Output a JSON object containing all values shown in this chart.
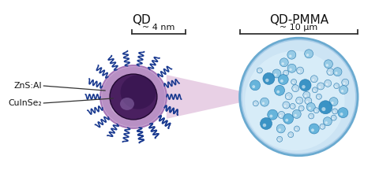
{
  "title_qd": "QD",
  "title_pmma": "QD-PMMA",
  "label_core": "CuInSe₂",
  "label_shell": "ZnS:Al",
  "size_qd": "~ 4 nm",
  "size_pmma": "~ 10 μm",
  "core_color": "#4a2060",
  "core_color2": "#3d1a55",
  "core_highlight": "#7a5090",
  "shell_color": "#c9a8d4",
  "shell_color2": "#b890c4",
  "shell_edge": "#a878b8",
  "pmma_fill": "#cce4f4",
  "pmma_edge": "#6aaad0",
  "pmma_inner_fill": "#ddf0fa",
  "pmma_rim": "#a8cce8",
  "dot_color_dark": "#2a8ac0",
  "dot_color_mid": "#5aaed8",
  "dot_color_light": "#90c8e4",
  "dot_color_pale": "#b8d8ec",
  "ligand_color": "#1a3a90",
  "beam_color": "#ddb8d8",
  "arrow_color": "#333333",
  "text_color": "#111111",
  "bg_color": "#ffffff"
}
